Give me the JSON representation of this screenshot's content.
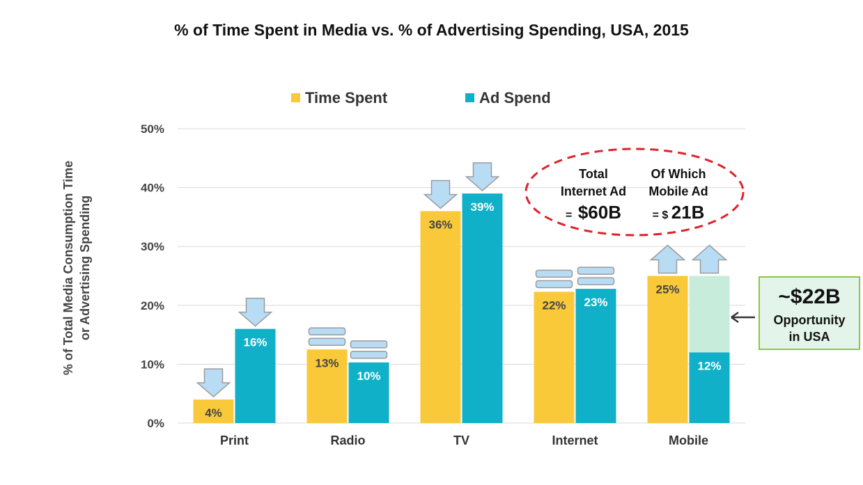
{
  "chart_data": {
    "type": "bar",
    "title": "% of Time Spent in Media vs. % of Advertising Spending, USA, 2015",
    "ylabel_line1": "% of Total Media Consumption Time",
    "ylabel_line2": "or Advertising Spending",
    "categories": [
      "Print",
      "Radio",
      "TV",
      "Internet",
      "Mobile"
    ],
    "series": [
      {
        "name": "Time Spent",
        "values": [
          4,
          12.5,
          36,
          22.3,
          25
        ],
        "labels": [
          "4%",
          "13%",
          "36%",
          "22%",
          "25%"
        ],
        "color": "#f9c93a"
      },
      {
        "name": "Ad Spend",
        "values": [
          16,
          10.3,
          39,
          22.8,
          12
        ],
        "labels": [
          "16%",
          "10%",
          "39%",
          "23%",
          "12%"
        ],
        "color": "#0fb0c8"
      }
    ],
    "trend_indicators": {
      "time_spent": [
        "down",
        "flat",
        "down",
        "flat",
        "up"
      ],
      "ad_spend": [
        "down",
        "flat",
        "down",
        "flat",
        "up"
      ]
    },
    "opportunity_fill": {
      "category": "Mobile",
      "from": 12,
      "to": 25,
      "color": "#c8ecdc"
    },
    "ylim": [
      0,
      50
    ],
    "yticks": [
      0,
      10,
      20,
      30,
      40,
      50
    ],
    "ytick_labels": [
      "0%",
      "10%",
      "20%",
      "30%",
      "40%",
      "50%"
    ],
    "grid": true,
    "legend": "top-center",
    "colors": {
      "arrow_fill": "#b8dcf4",
      "arrow_stroke": "#9a9a9a",
      "ellipse": "#e0212a",
      "opportunity_border": "#8cc63f",
      "opportunity_bg": "#e3f5ea"
    }
  },
  "annotations": {
    "internet_total": {
      "line1": "Total",
      "line2": "Internet Ad",
      "prefix": "=",
      "amount": "$60B"
    },
    "mobile_share": {
      "line1": "Of Which",
      "line2": "Mobile Ad",
      "prefix": "= $",
      "amount": "21B"
    },
    "opportunity": {
      "amount": "~$22B",
      "line1": "Opportunity",
      "line2": "in USA"
    }
  }
}
